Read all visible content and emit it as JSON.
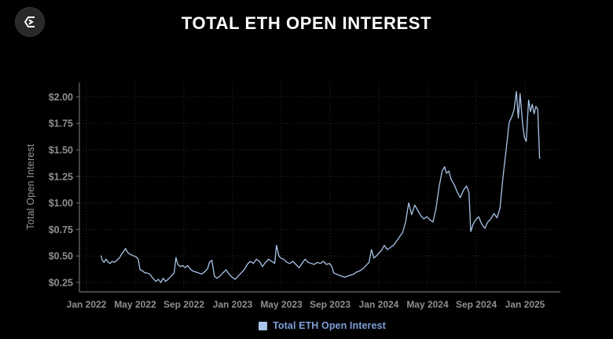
{
  "header": {
    "title": "TOTAL ETH OPEN INTEREST",
    "logo_icon": "sigma-logo"
  },
  "colors": {
    "background": "#000000",
    "title_text": "#ffffff",
    "axis_line": "#6f6f6f",
    "gridline": "#2e2e2e",
    "tick_text": "#8f8f8f",
    "series_line": "#a9c4e9",
    "legend_text": "#7f9fd8",
    "legend_swatch": "#a9c4e9"
  },
  "chart_data": {
    "type": "line",
    "title": "TOTAL ETH OPEN INTEREST",
    "xlabel": "",
    "ylabel": "Total Open Interest",
    "grid": true,
    "legend_position": "bottom",
    "legend": [
      {
        "label": "Total ETH Open Interest",
        "color": "#a9c4e9"
      }
    ],
    "ylim": [
      0.16,
      2.14
    ],
    "y_tick_format": "$0.00",
    "y_ticks": [
      {
        "value": 0.25,
        "label": "$0.25"
      },
      {
        "value": 0.5,
        "label": "$0.50"
      },
      {
        "value": 0.75,
        "label": "$0.75"
      },
      {
        "value": 1.0,
        "label": "$1.00"
      },
      {
        "value": 1.25,
        "label": "$1.25"
      },
      {
        "value": 1.5,
        "label": "$1.50"
      },
      {
        "value": 1.75,
        "label": "$1.75"
      },
      {
        "value": 2.0,
        "label": "$2.00"
      }
    ],
    "x_unit": "month_index_from_2022-01",
    "x_ticks": [
      {
        "month": 0,
        "label": "Jan 2022"
      },
      {
        "month": 4,
        "label": "May 2022"
      },
      {
        "month": 8,
        "label": "Sep 2022"
      },
      {
        "month": 12,
        "label": "Jan 2023"
      },
      {
        "month": 16,
        "label": "May 2023"
      },
      {
        "month": 20,
        "label": "Sep 2023"
      },
      {
        "month": 24,
        "label": "Jan 2024"
      },
      {
        "month": 28,
        "label": "May 2024"
      },
      {
        "month": 32,
        "label": "Sep 2024"
      },
      {
        "month": 36,
        "label": "Jan 2025"
      }
    ],
    "series": [
      {
        "name": "Total ETH Open Interest",
        "color": "#a9c4e9",
        "points": [
          [
            1.2,
            0.5
          ],
          [
            1.3,
            0.46
          ],
          [
            1.45,
            0.44
          ],
          [
            1.6,
            0.47
          ],
          [
            1.8,
            0.44
          ],
          [
            1.95,
            0.43
          ],
          [
            2.1,
            0.45
          ],
          [
            2.3,
            0.44
          ],
          [
            2.5,
            0.46
          ],
          [
            2.7,
            0.48
          ],
          [
            2.9,
            0.52
          ],
          [
            3.1,
            0.55
          ],
          [
            3.2,
            0.57
          ],
          [
            3.35,
            0.54
          ],
          [
            3.5,
            0.52
          ],
          [
            3.7,
            0.51
          ],
          [
            3.9,
            0.5
          ],
          [
            4.1,
            0.49
          ],
          [
            4.25,
            0.47
          ],
          [
            4.4,
            0.37
          ],
          [
            4.6,
            0.36
          ],
          [
            4.8,
            0.34
          ],
          [
            4.95,
            0.34
          ],
          [
            5.2,
            0.33
          ],
          [
            5.45,
            0.29
          ],
          [
            5.7,
            0.26
          ],
          [
            5.9,
            0.28
          ],
          [
            6.1,
            0.25
          ],
          [
            6.3,
            0.29
          ],
          [
            6.5,
            0.26
          ],
          [
            6.7,
            0.28
          ],
          [
            6.95,
            0.31
          ],
          [
            7.2,
            0.34
          ],
          [
            7.35,
            0.485
          ],
          [
            7.5,
            0.42
          ],
          [
            7.7,
            0.4
          ],
          [
            7.9,
            0.41
          ],
          [
            8.1,
            0.39
          ],
          [
            8.3,
            0.41
          ],
          [
            8.5,
            0.38
          ],
          [
            8.7,
            0.36
          ],
          [
            8.95,
            0.35
          ],
          [
            9.2,
            0.34
          ],
          [
            9.45,
            0.33
          ],
          [
            9.7,
            0.35
          ],
          [
            9.95,
            0.38
          ],
          [
            10.1,
            0.44
          ],
          [
            10.3,
            0.46
          ],
          [
            10.5,
            0.31
          ],
          [
            10.7,
            0.29
          ],
          [
            10.95,
            0.31
          ],
          [
            11.2,
            0.34
          ],
          [
            11.45,
            0.37
          ],
          [
            11.7,
            0.33
          ],
          [
            11.95,
            0.3
          ],
          [
            12.2,
            0.28
          ],
          [
            12.45,
            0.31
          ],
          [
            12.7,
            0.34
          ],
          [
            12.95,
            0.37
          ],
          [
            13.2,
            0.42
          ],
          [
            13.45,
            0.45
          ],
          [
            13.7,
            0.43
          ],
          [
            13.95,
            0.47
          ],
          [
            14.2,
            0.45
          ],
          [
            14.45,
            0.4
          ],
          [
            14.7,
            0.44
          ],
          [
            14.95,
            0.47
          ],
          [
            15.2,
            0.45
          ],
          [
            15.45,
            0.43
          ],
          [
            15.6,
            0.6
          ],
          [
            15.8,
            0.5
          ],
          [
            15.95,
            0.48
          ],
          [
            16.2,
            0.47
          ],
          [
            16.45,
            0.44
          ],
          [
            16.7,
            0.43
          ],
          [
            16.95,
            0.45
          ],
          [
            17.2,
            0.42
          ],
          [
            17.45,
            0.39
          ],
          [
            17.7,
            0.43
          ],
          [
            17.95,
            0.47
          ],
          [
            18.2,
            0.44
          ],
          [
            18.45,
            0.43
          ],
          [
            18.7,
            0.42
          ],
          [
            18.95,
            0.44
          ],
          [
            19.2,
            0.43
          ],
          [
            19.45,
            0.45
          ],
          [
            19.7,
            0.42
          ],
          [
            19.95,
            0.43
          ],
          [
            20.15,
            0.4
          ],
          [
            20.3,
            0.34
          ],
          [
            20.5,
            0.33
          ],
          [
            20.7,
            0.32
          ],
          [
            20.95,
            0.31
          ],
          [
            21.2,
            0.3
          ],
          [
            21.45,
            0.31
          ],
          [
            21.7,
            0.32
          ],
          [
            21.95,
            0.33
          ],
          [
            22.2,
            0.35
          ],
          [
            22.45,
            0.36
          ],
          [
            22.7,
            0.38
          ],
          [
            22.95,
            0.41
          ],
          [
            23.2,
            0.44
          ],
          [
            23.4,
            0.56
          ],
          [
            23.6,
            0.48
          ],
          [
            23.8,
            0.5
          ],
          [
            23.95,
            0.52
          ],
          [
            24.2,
            0.55
          ],
          [
            24.45,
            0.6
          ],
          [
            24.7,
            0.56
          ],
          [
            24.95,
            0.58
          ],
          [
            25.2,
            0.6
          ],
          [
            25.45,
            0.64
          ],
          [
            25.7,
            0.68
          ],
          [
            25.95,
            0.72
          ],
          [
            26.2,
            0.82
          ],
          [
            26.45,
            1.0
          ],
          [
            26.7,
            0.89
          ],
          [
            26.95,
            0.98
          ],
          [
            27.2,
            0.93
          ],
          [
            27.45,
            0.88
          ],
          [
            27.7,
            0.85
          ],
          [
            27.95,
            0.87
          ],
          [
            28.2,
            0.84
          ],
          [
            28.45,
            0.82
          ],
          [
            28.7,
            0.95
          ],
          [
            28.95,
            1.15
          ],
          [
            29.2,
            1.3
          ],
          [
            29.4,
            1.34
          ],
          [
            29.55,
            1.28
          ],
          [
            29.75,
            1.3
          ],
          [
            29.95,
            1.22
          ],
          [
            30.2,
            1.17
          ],
          [
            30.45,
            1.1
          ],
          [
            30.7,
            1.05
          ],
          [
            30.95,
            1.12
          ],
          [
            31.2,
            1.16
          ],
          [
            31.4,
            1.1
          ],
          [
            31.55,
            0.73
          ],
          [
            31.75,
            0.8
          ],
          [
            31.95,
            0.84
          ],
          [
            32.2,
            0.87
          ],
          [
            32.45,
            0.8
          ],
          [
            32.7,
            0.76
          ],
          [
            32.95,
            0.82
          ],
          [
            33.2,
            0.85
          ],
          [
            33.45,
            0.9
          ],
          [
            33.7,
            0.86
          ],
          [
            33.95,
            0.95
          ],
          [
            34.2,
            1.25
          ],
          [
            34.45,
            1.5
          ],
          [
            34.7,
            1.76
          ],
          [
            34.95,
            1.82
          ],
          [
            35.1,
            1.88
          ],
          [
            35.3,
            2.05
          ],
          [
            35.45,
            1.8
          ],
          [
            35.6,
            2.03
          ],
          [
            35.8,
            1.75
          ],
          [
            35.95,
            1.62
          ],
          [
            36.1,
            1.58
          ],
          [
            36.3,
            1.97
          ],
          [
            36.45,
            1.86
          ],
          [
            36.6,
            1.93
          ],
          [
            36.75,
            1.84
          ],
          [
            36.9,
            1.91
          ],
          [
            37.05,
            1.88
          ],
          [
            37.2,
            1.42
          ]
        ]
      }
    ]
  }
}
